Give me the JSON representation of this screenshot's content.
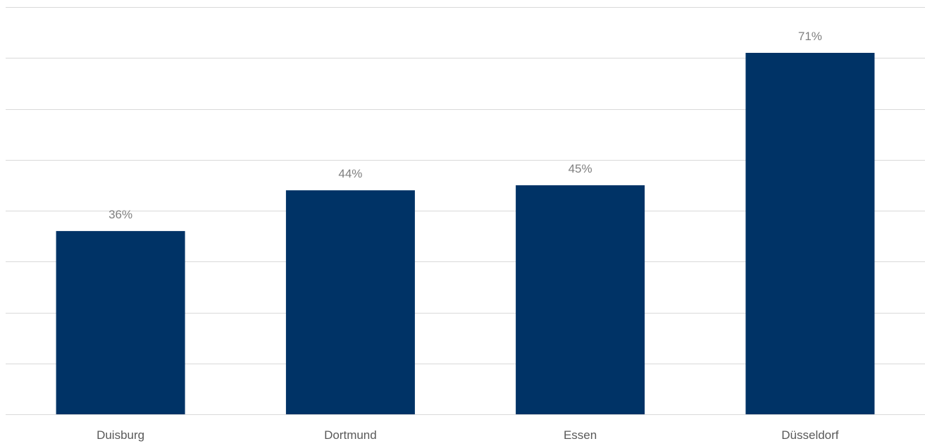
{
  "chart_data": {
    "type": "bar",
    "categories": [
      "Duisburg",
      "Dortmund",
      "Essen",
      "Düsseldorf"
    ],
    "series": [
      {
        "values": [
          36,
          44,
          45,
          71
        ],
        "labels": [
          "36%",
          "44%",
          "45%",
          "71%"
        ]
      }
    ],
    "ylim": [
      0,
      80
    ],
    "grid": true,
    "legend": "none",
    "colors": {
      "bar": "#003366",
      "grid": "#d9d9d9",
      "data_label": "#7f7f7f",
      "tick_label": "#595959"
    }
  }
}
